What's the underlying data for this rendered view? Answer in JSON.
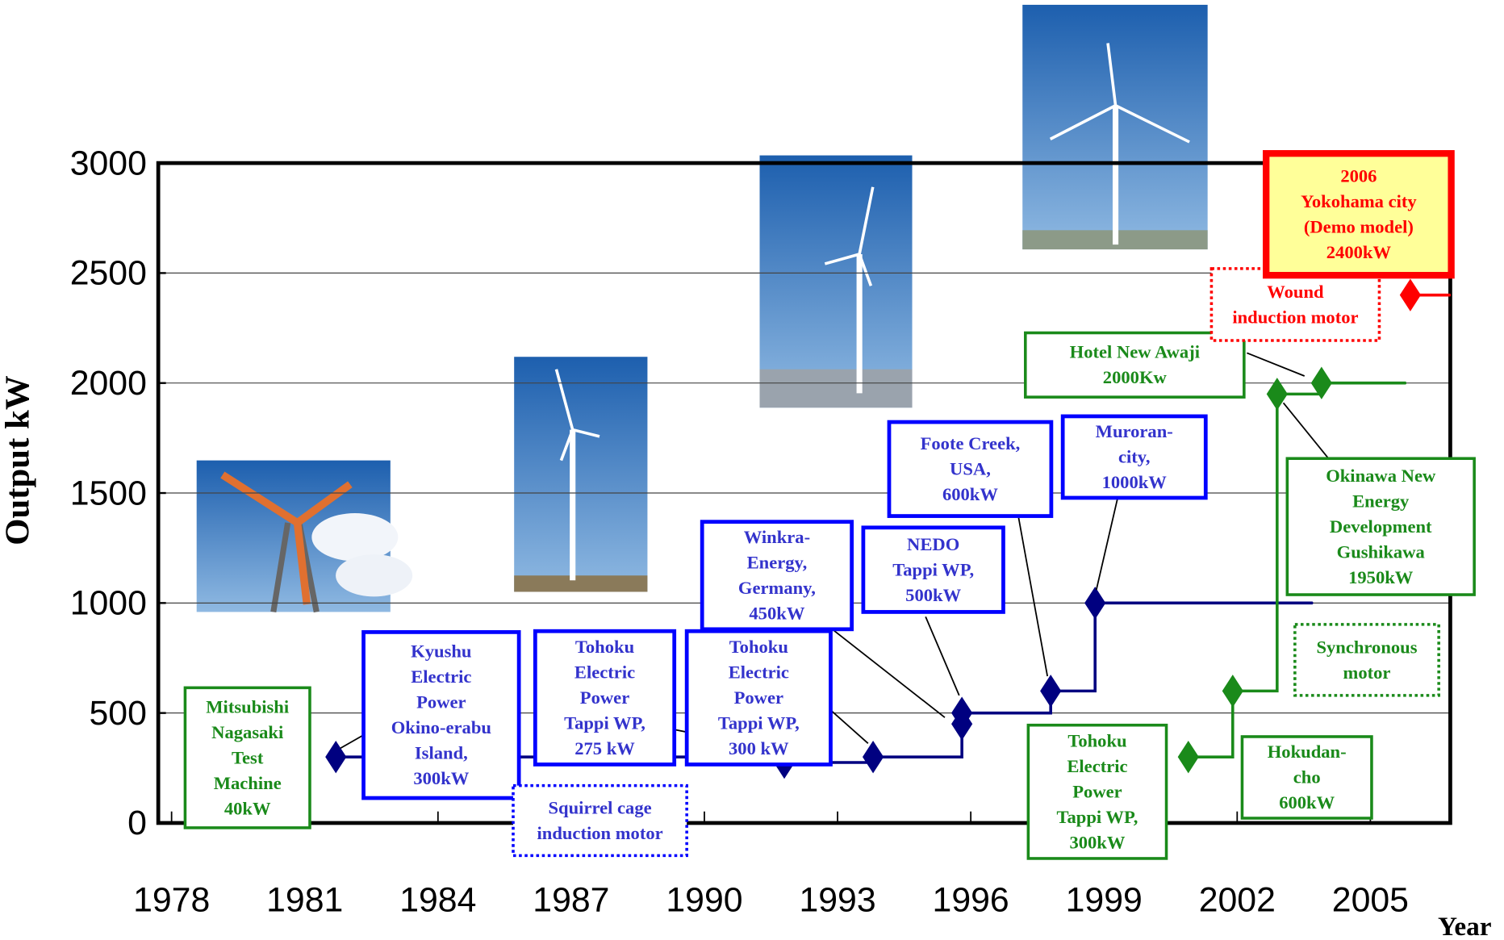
{
  "chart_data": {
    "type": "step",
    "y_label": "Output kW",
    "x_label": "Year",
    "xlim": [
      1977.7,
      2006.8
    ],
    "ylim": [
      0,
      3000
    ],
    "xticks": [
      1978,
      1981,
      1984,
      1987,
      1990,
      1993,
      1996,
      1999,
      2002,
      2005
    ],
    "yticks": [
      0,
      500,
      1000,
      1500,
      2000,
      2500,
      3000
    ],
    "grid": true,
    "series": [
      {
        "color": "#000080",
        "x": [
          1981.7,
          1991.8,
          1993.8,
          1995.8,
          1995.8,
          1997.8,
          1998.8
        ],
        "values": [
          300,
          275,
          300,
          450,
          500,
          600,
          1000
        ],
        "line_end_x": 2003.7
      },
      {
        "color": "#1a8a1a",
        "x": [
          2000.9,
          2001.9,
          2002.9,
          2003.9
        ],
        "values": [
          300,
          600,
          1950,
          2000
        ],
        "line_end_x": 2005.8
      },
      {
        "color": "#ff0000",
        "x": [
          2005.9
        ],
        "values": [
          2400
        ],
        "line_end_x": 2006.8
      }
    ],
    "annotations": [
      {
        "color": "#1a8a1a",
        "lines": [
          "Mitsubishi",
          "Nagasaki",
          "Test",
          "Machine",
          "40kW"
        ]
      },
      {
        "color": "#0000ff",
        "lines": [
          "Kyushu",
          "Electric",
          "Power",
          "Okino-erabu",
          "Island,",
          "300kW"
        ]
      },
      {
        "color": "#0000ff",
        "lines": [
          "Tohoku",
          "Electric",
          "Power",
          "Tappi WP,",
          "275 kW"
        ]
      },
      {
        "color": "#0000ff",
        "lines": [
          "Tohoku",
          "Electric",
          "Power",
          "Tappi WP,",
          "300 kW"
        ]
      },
      {
        "color": "#0000ff",
        "lines": [
          "Squirrel cage",
          "induction motor"
        ]
      },
      {
        "color": "#0000ff",
        "lines": [
          "Winkra-",
          "Energy,",
          "Germany,",
          "450kW"
        ]
      },
      {
        "color": "#0000ff",
        "lines": [
          "NEDO",
          "Tappi WP,",
          "500kW"
        ]
      },
      {
        "color": "#0000ff",
        "lines": [
          "Foote Creek,",
          "USA,",
          "600kW"
        ]
      },
      {
        "color": "#0000ff",
        "lines": [
          "Muroran-",
          "city,",
          "1000kW"
        ]
      },
      {
        "color": "#1a8a1a",
        "lines": [
          "Hotel New Awaji",
          "2000Kw"
        ]
      },
      {
        "color": "#ff0000",
        "lines": [
          "Wound",
          "induction motor"
        ]
      },
      {
        "color": "#ff0000",
        "lines": [
          "2006",
          "Yokohama city",
          "(Demo model)",
          "2400kW"
        ]
      },
      {
        "color": "#1a8a1a",
        "lines": [
          "Okinawa New",
          "Energy",
          "Development",
          "Gushikawa",
          "1950kW"
        ]
      },
      {
        "color": "#1a8a1a",
        "lines": [
          "Synchronous",
          "motor"
        ]
      },
      {
        "color": "#1a8a1a",
        "lines": [
          "Tohoku",
          "Electric",
          "Power",
          "Tappi WP,",
          "300kW"
        ]
      },
      {
        "color": "#1a8a1a",
        "lines": [
          "Hokudan-",
          "cho",
          "600kW"
        ]
      }
    ]
  }
}
